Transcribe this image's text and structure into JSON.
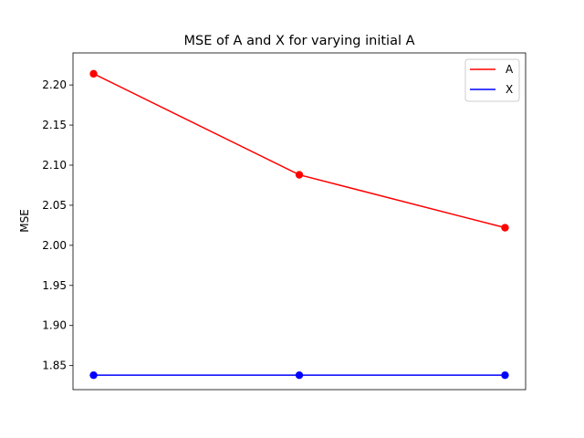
{
  "chart_data": {
    "type": "line",
    "title": "MSE of A and X for varying initial A",
    "xlabel": "",
    "ylabel": "MSE",
    "x": [
      0,
      1,
      2
    ],
    "xlim": [
      -0.1,
      2.1
    ],
    "ylim": [
      1.82,
      2.24
    ],
    "yticks": [
      1.85,
      1.9,
      1.95,
      2.0,
      2.05,
      2.1,
      2.15,
      2.2
    ],
    "grid": false,
    "legend_position": "top-right",
    "series": [
      {
        "name": "A",
        "color": "#ff0000",
        "values": [
          2.214,
          2.088,
          2.022
        ]
      },
      {
        "name": "X",
        "color": "#0000ff",
        "values": [
          1.838,
          1.838,
          1.838
        ]
      }
    ]
  }
}
